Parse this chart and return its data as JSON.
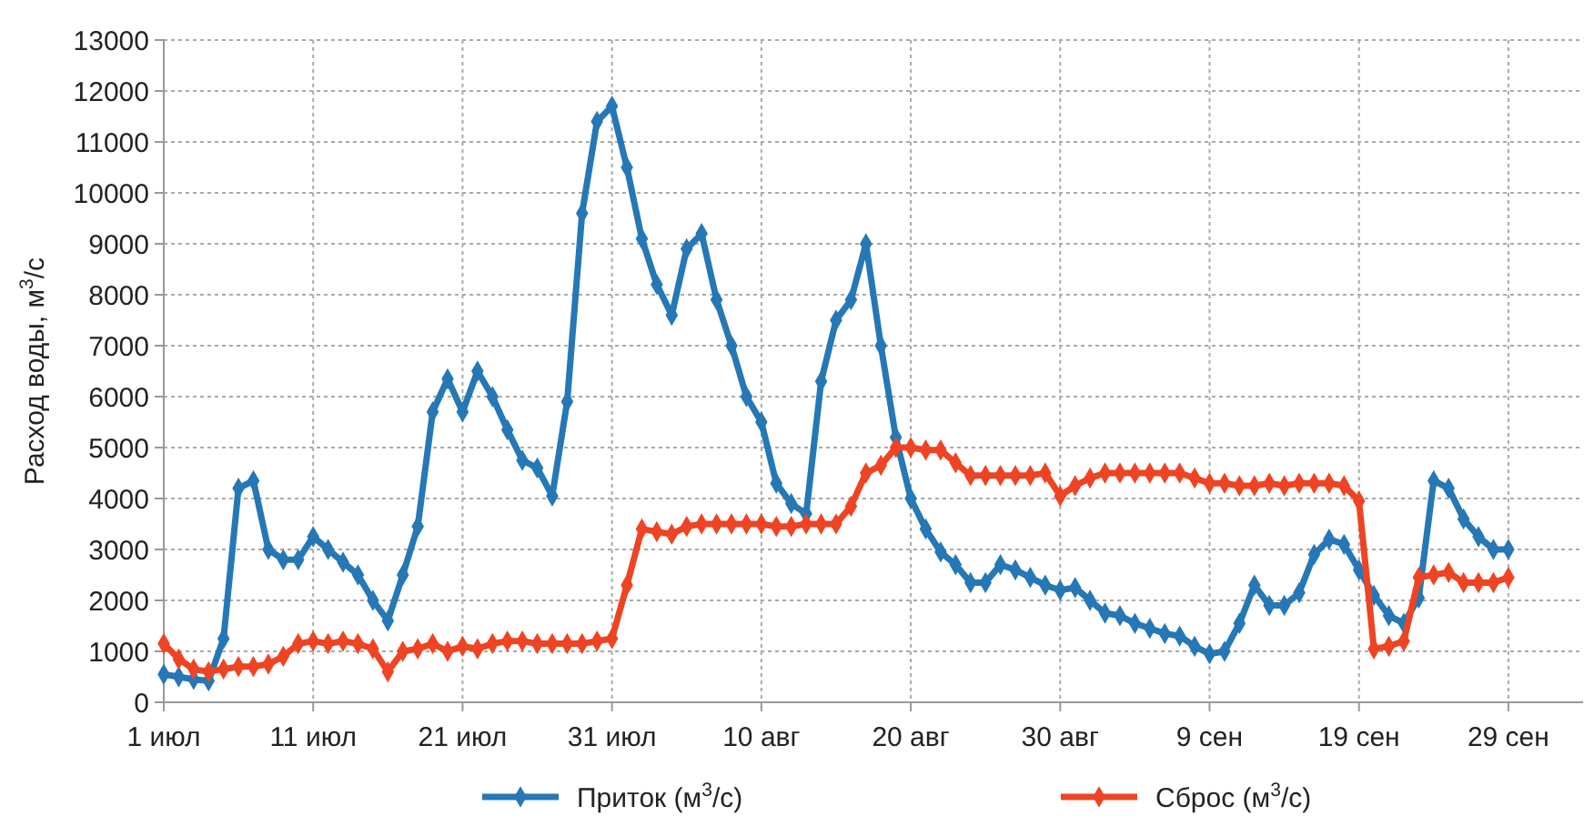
{
  "chart_data": {
    "type": "line",
    "ylabel": "Расход воды, м$^{3}$/с",
    "x": [
      "--07-01",
      "--07-02",
      "--07-03",
      "--07-04",
      "--07-05",
      "--07-06",
      "--07-07",
      "--07-08",
      "--07-09",
      "--07-10",
      "--07-11",
      "--07-12",
      "--07-13",
      "--07-14",
      "--07-15",
      "--07-16",
      "--07-17",
      "--07-18",
      "--07-19",
      "--07-20",
      "--07-21",
      "--07-22",
      "--07-23",
      "--07-24",
      "--07-25",
      "--07-26",
      "--07-27",
      "--07-28",
      "--07-29",
      "--07-30",
      "--07-31",
      "--08-01",
      "--08-02",
      "--08-03",
      "--08-04",
      "--08-05",
      "--08-06",
      "--08-07",
      "--08-08",
      "--08-09",
      "--08-10",
      "--08-11",
      "--08-12",
      "--08-13",
      "--08-14",
      "--08-15",
      "--08-16",
      "--08-17",
      "--08-18",
      "--08-19",
      "--08-20",
      "--08-21",
      "--08-22",
      "--08-23",
      "--08-24",
      "--08-25",
      "--08-26",
      "--08-27",
      "--08-28",
      "--08-29",
      "--08-30",
      "--08-31",
      "--09-01",
      "--09-02",
      "--09-03",
      "--09-04",
      "--09-05",
      "--09-06",
      "--09-07",
      "--09-08",
      "--09-09",
      "--09-10",
      "--09-11",
      "--09-12",
      "--09-13",
      "--09-14",
      "--09-15",
      "--09-16",
      "--09-17",
      "--09-18",
      "--09-19",
      "--09-20",
      "--09-21",
      "--09-22",
      "--09-23",
      "--09-24",
      "--09-25",
      "--09-26",
      "--09-27",
      "--09-28",
      "--09-29"
    ],
    "series": [
      {
        "name": "Приток (м$^{3}$/с)",
        "color": "#2578b5",
        "values": [
          550,
          500,
          450,
          420,
          1250,
          4200,
          4350,
          3000,
          2800,
          2800,
          3250,
          3000,
          2750,
          2500,
          2000,
          1600,
          2500,
          3450,
          5700,
          6350,
          5700,
          6500,
          6000,
          5350,
          4750,
          4600,
          4050,
          5900,
          9600,
          11400,
          11700,
          10500,
          9100,
          8200,
          7600,
          8900,
          9200,
          7900,
          7000,
          6000,
          5500,
          4300,
          3900,
          3700,
          6300,
          7500,
          7900,
          9000,
          7000,
          5200,
          4000,
          3400,
          2950,
          2700,
          2350,
          2350,
          2700,
          2600,
          2450,
          2300,
          2200,
          2250,
          2000,
          1750,
          1700,
          1550,
          1450,
          1350,
          1300,
          1100,
          950,
          1000,
          1550,
          2300,
          1900,
          1900,
          2150,
          2900,
          3200,
          3100,
          2600,
          2100,
          1700,
          1550,
          2050,
          4350,
          4200,
          3600,
          3250,
          3000,
          3000
        ]
      },
      {
        "name": "Сброс (м$^{3}$/с)",
        "color": "#ee4423",
        "values": [
          1150,
          850,
          650,
          600,
          650,
          700,
          700,
          750,
          900,
          1150,
          1200,
          1150,
          1200,
          1150,
          1050,
          600,
          1000,
          1050,
          1150,
          1000,
          1100,
          1050,
          1150,
          1200,
          1200,
          1150,
          1150,
          1150,
          1150,
          1200,
          1250,
          2300,
          3400,
          3350,
          3300,
          3450,
          3500,
          3500,
          3500,
          3500,
          3500,
          3450,
          3450,
          3500,
          3500,
          3500,
          3850,
          4500,
          4650,
          5000,
          5000,
          4950,
          4950,
          4700,
          4450,
          4450,
          4450,
          4450,
          4450,
          4500,
          4050,
          4250,
          4400,
          4500,
          4500,
          4500,
          4500,
          4500,
          4500,
          4400,
          4300,
          4300,
          4250,
          4250,
          4300,
          4250,
          4300,
          4300,
          4300,
          4250,
          3950,
          1050,
          1100,
          1200,
          2450,
          2500,
          2550,
          2350,
          2350,
          2350,
          2450
        ]
      }
    ],
    "xlim": [
      "--07-01",
      "--10-04"
    ],
    "xticks": [
      {
        "value": "--07-01",
        "label": "1 июл"
      },
      {
        "value": "--07-11",
        "label": "11 июл"
      },
      {
        "value": "--07-21",
        "label": "21 июл"
      },
      {
        "value": "--07-31",
        "label": "31 июл"
      },
      {
        "value": "--08-10",
        "label": "10 авг"
      },
      {
        "value": "--08-20",
        "label": "20 авг"
      },
      {
        "value": "--08-30",
        "label": "30 авг"
      },
      {
        "value": "--09-09",
        "label": "9 сен"
      },
      {
        "value": "--09-19",
        "label": "19 сен"
      },
      {
        "value": "--09-29",
        "label": "29 сен"
      }
    ],
    "ylim": [
      0,
      13000
    ],
    "yticks": [
      0,
      1000,
      2000,
      3000,
      4000,
      5000,
      6000,
      7000,
      8000,
      9000,
      10000,
      11000,
      12000,
      13000
    ],
    "grid": true,
    "legend": "bottom",
    "marker": "diamond",
    "line_style": "solid"
  }
}
